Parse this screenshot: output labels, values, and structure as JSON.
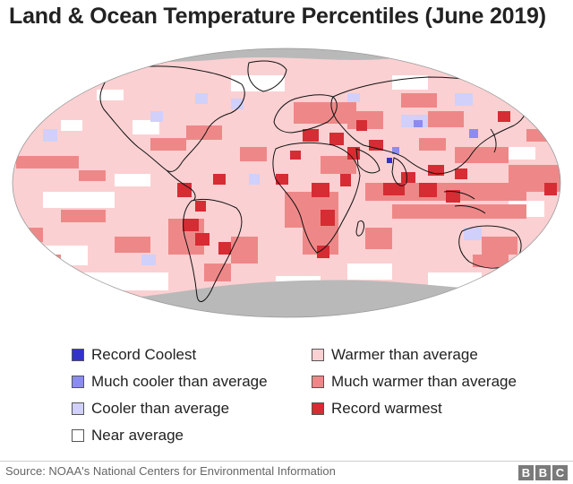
{
  "title": "Land & Ocean Temperature Percentiles (June 2019)",
  "legend": [
    {
      "label": "Record Coolest",
      "color": "#3333cc"
    },
    {
      "label": "Much cooler than average",
      "color": "#8c8cee"
    },
    {
      "label": "Cooler than average",
      "color": "#d0d0fa"
    },
    {
      "label": "Near average",
      "color": "#ffffff"
    },
    {
      "label": "Warmer than  average",
      "color": "#fbd0d2"
    },
    {
      "label": "Much warmer than average",
      "color": "#ee8888"
    },
    {
      "label": "Record warmest",
      "color": "#d62c34"
    }
  ],
  "colors": {
    "no_data": "#b9b9b9",
    "coastline": "#111111"
  },
  "source": "Source: NOAA's National Centers for Environmental Information",
  "logo": [
    "B",
    "B",
    "C"
  ]
}
